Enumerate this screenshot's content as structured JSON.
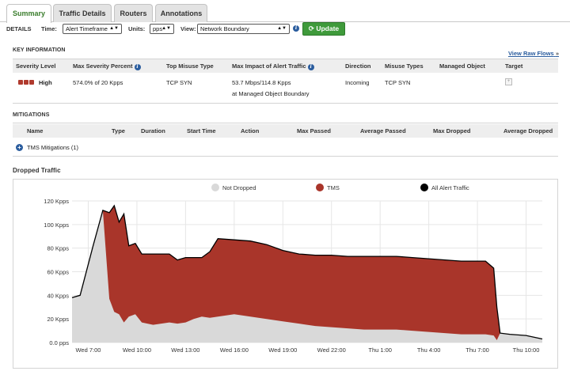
{
  "tabs": [
    {
      "label": "Summary",
      "active": true
    },
    {
      "label": "Traffic Details",
      "active": false
    },
    {
      "label": "Routers",
      "active": false
    },
    {
      "label": "Annotations",
      "active": false
    }
  ],
  "details_bar": {
    "label": "DETAILS",
    "time_label": "Time:",
    "time_value": "Alert Timeframe",
    "units_label": "Units:",
    "units_value": "pps",
    "view_label": "View:",
    "view_value": "Network Boundary",
    "update_label": "Update"
  },
  "key_information": {
    "title": "KEY INFORMATION",
    "view_raw_flows": "View Raw Flows",
    "view_raw_flows_suffix": "»",
    "headers": [
      "Severity Level",
      "Max Severity Percent",
      "Top Misuse Type",
      "Max Impact of Alert Traffic",
      "Direction",
      "Misuse Types",
      "Managed Object",
      "Target"
    ],
    "row": {
      "severity": "High",
      "max_severity_percent": "574.0% of 20 Kpps",
      "top_misuse_type": "TCP SYN",
      "max_impact_line1": "53.7 Mbps/114.8 Kpps",
      "max_impact_line2": "at Managed Object Boundary",
      "direction": "Incoming",
      "misuse_types": "TCP SYN",
      "managed_object": "",
      "target_icon": "+"
    }
  },
  "mitigations": {
    "title": "MITIGATIONS",
    "headers": [
      "Name",
      "Type",
      "Duration",
      "Start Time",
      "Action",
      "Max Passed",
      "Average Passed",
      "Max Dropped",
      "Average Dropped"
    ],
    "group_label": "TMS Mitigations (1)"
  },
  "dropped_traffic": {
    "title": "Dropped Traffic"
  },
  "colors": {
    "tms": "#a9352a",
    "not_dropped": "#d9d9d9",
    "all_alert": "#000000",
    "accent_green": "#3f9a3b",
    "link_blue": "#2b5d9e"
  },
  "chart_data": {
    "type": "area",
    "title": "Dropped Traffic",
    "xlabel": "",
    "ylabel": "",
    "x_ticks": [
      "Wed 7:00",
      "Wed 10:00",
      "Wed 13:00",
      "Wed 16:00",
      "Wed 19:00",
      "Wed 22:00",
      "Thu 1:00",
      "Thu 4:00",
      "Thu 7:00",
      "Thu 10:00"
    ],
    "y_ticks": [
      "0.0 pps",
      "20 Kpps",
      "40 Kpps",
      "60 Kpps",
      "80 Kpps",
      "100 Kpps",
      "120 Kpps"
    ],
    "ylim": [
      0,
      120
    ],
    "y_unit": "Kpps",
    "x_unit": "hours since Wed 7:00",
    "xlim": [
      -1,
      28
    ],
    "legend_position": "top-center",
    "grid": true,
    "series": [
      {
        "name": "All Alert Traffic",
        "x": [
          -1,
          -0.5,
          0.3,
          0.9,
          1.3,
          1.6,
          1.9,
          2.2,
          2.5,
          2.9,
          3.3,
          4,
          5,
          5.5,
          6,
          6.5,
          7,
          7.5,
          8,
          9,
          10,
          11,
          12,
          13,
          14,
          15,
          16,
          17,
          18,
          19,
          20,
          21,
          22,
          23,
          24,
          24.5,
          25,
          25.2,
          25.4,
          26,
          27,
          28
        ],
        "values": [
          38,
          40,
          82,
          112,
          110,
          116,
          102,
          109,
          82,
          84,
          75,
          75,
          75,
          70,
          72,
          72,
          72,
          77,
          88,
          87,
          86,
          83,
          78,
          75,
          74,
          74,
          73,
          73,
          73,
          73,
          72,
          71,
          70,
          69,
          69,
          69,
          63,
          30,
          8,
          7,
          6,
          3
        ]
      },
      {
        "name": "TMS",
        "x": [
          -1,
          -0.5,
          0.3,
          0.9,
          1.3,
          1.6,
          1.9,
          2.2,
          2.5,
          2.9,
          3.3,
          4,
          5,
          5.5,
          6,
          6.5,
          7,
          7.5,
          8,
          9,
          10,
          11,
          12,
          13,
          14,
          15,
          16,
          17,
          18,
          19,
          20,
          21,
          22,
          23,
          24,
          24.5,
          25,
          25.2,
          25.4,
          26,
          27,
          28
        ],
        "values": [
          0,
          0,
          0,
          0,
          73,
          90,
          78,
          92,
          60,
          60,
          58,
          60,
          58,
          54,
          55,
          52,
          50,
          56,
          66,
          63,
          64,
          63,
          60,
          59,
          60,
          61,
          61,
          62,
          62,
          62,
          62,
          62,
          62,
          62,
          62,
          62,
          57,
          28,
          0,
          0,
          0,
          0
        ]
      },
      {
        "name": "Not Dropped",
        "x": [
          -1,
          -0.5,
          0.3,
          0.9,
          1.3,
          1.6,
          1.9,
          2.2,
          2.5,
          2.9,
          3.3,
          4,
          5,
          5.5,
          6,
          6.5,
          7,
          7.5,
          8,
          9,
          10,
          11,
          12,
          13,
          14,
          15,
          16,
          17,
          18,
          19,
          20,
          21,
          22,
          23,
          24,
          24.5,
          25,
          25.2,
          25.4,
          26,
          27,
          28
        ],
        "values": [
          38,
          40,
          82,
          112,
          37,
          26,
          24,
          17,
          22,
          24,
          17,
          15,
          17,
          16,
          17,
          20,
          22,
          21,
          22,
          24,
          22,
          20,
          18,
          16,
          14,
          13,
          12,
          11,
          11,
          11,
          10,
          9,
          8,
          7,
          7,
          7,
          6,
          2,
          8,
          7,
          6,
          3
        ]
      }
    ]
  }
}
